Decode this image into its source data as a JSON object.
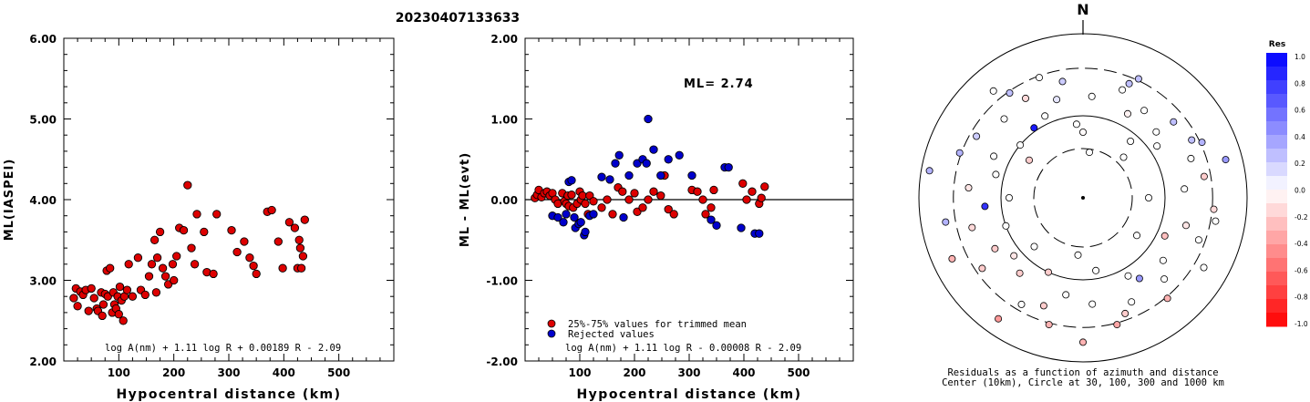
{
  "figure_title": "20230407133633",
  "colors": {
    "trimmed": "#dd0000",
    "rejected": "#0000cc",
    "positive_max": "#0000ff",
    "negative_max": "#ff0000"
  },
  "chart_data": [
    {
      "type": "scatter",
      "xlabel": "Hypocentral distance (km)",
      "ylabel": "ML(IASPEI)",
      "xlim": [
        0,
        600
      ],
      "ylim": [
        2.0,
        6.0
      ],
      "xticks": [
        "100",
        "200",
        "300",
        "400",
        "500"
      ],
      "yticks": [
        "2.00",
        "3.00",
        "4.00",
        "5.00",
        "6.00"
      ],
      "formula": "log A(nm) + 1.11 log R + 0.00189 R - 2.09",
      "series": [
        {
          "points": [
            [
              18,
              2.78
            ],
            [
              22,
              2.9
            ],
            [
              25,
              2.68
            ],
            [
              30,
              2.86
            ],
            [
              35,
              2.82
            ],
            [
              40,
              2.88
            ],
            [
              45,
              2.62
            ],
            [
              50,
              2.9
            ],
            [
              55,
              2.78
            ],
            [
              60,
              2.65
            ],
            [
              62,
              2.62
            ],
            [
              68,
              2.85
            ],
            [
              70,
              2.56
            ],
            [
              72,
              2.7
            ],
            [
              75,
              2.83
            ],
            [
              78,
              3.12
            ],
            [
              80,
              2.8
            ],
            [
              84,
              3.15
            ],
            [
              88,
              2.6
            ],
            [
              90,
              2.85
            ],
            [
              92,
              2.7
            ],
            [
              95,
              2.65
            ],
            [
              98,
              2.8
            ],
            [
              100,
              2.58
            ],
            [
              102,
              2.92
            ],
            [
              105,
              2.75
            ],
            [
              108,
              2.5
            ],
            [
              110,
              2.8
            ],
            [
              115,
              2.88
            ],
            [
              118,
              3.2
            ],
            [
              125,
              2.8
            ],
            [
              135,
              3.28
            ],
            [
              140,
              2.88
            ],
            [
              148,
              2.82
            ],
            [
              155,
              3.05
            ],
            [
              160,
              3.2
            ],
            [
              165,
              3.5
            ],
            [
              168,
              2.85
            ],
            [
              170,
              3.28
            ],
            [
              175,
              3.6
            ],
            [
              180,
              3.15
            ],
            [
              185,
              3.05
            ],
            [
              190,
              2.95
            ],
            [
              198,
              3.2
            ],
            [
              200,
              3.0
            ],
            [
              205,
              3.3
            ],
            [
              210,
              3.65
            ],
            [
              218,
              3.62
            ],
            [
              225,
              4.18
            ],
            [
              232,
              3.4
            ],
            [
              238,
              3.2
            ],
            [
              242,
              3.82
            ],
            [
              255,
              3.6
            ],
            [
              260,
              3.1
            ],
            [
              272,
              3.08
            ],
            [
              278,
              3.82
            ],
            [
              305,
              3.62
            ],
            [
              315,
              3.35
            ],
            [
              328,
              3.48
            ],
            [
              338,
              3.28
            ],
            [
              345,
              3.18
            ],
            [
              350,
              3.08
            ],
            [
              370,
              3.85
            ],
            [
              378,
              3.87
            ],
            [
              390,
              3.48
            ],
            [
              398,
              3.15
            ],
            [
              410,
              3.72
            ],
            [
              420,
              3.65
            ],
            [
              425,
              3.15
            ],
            [
              428,
              3.5
            ],
            [
              430,
              3.4
            ],
            [
              432,
              3.15
            ],
            [
              435,
              3.3
            ],
            [
              438,
              3.75
            ]
          ]
        }
      ]
    },
    {
      "type": "scatter",
      "xlabel": "Hypocentral distance (km)",
      "ylabel": "ML - ML(evt)",
      "xlim": [
        0,
        600
      ],
      "ylim": [
        -2.0,
        2.0
      ],
      "xticks": [
        "100",
        "200",
        "300",
        "400",
        "500"
      ],
      "yticks": [
        "-2.00",
        "-1.00",
        "0.00",
        "1.00",
        "2.00"
      ],
      "annotation": "ML= 2.74",
      "formula": "log A(nm) + 1.11 log R - 0.00008 R - 2.09",
      "legend": [
        "25%-75% values for trimmed mean",
        "Rejected values"
      ],
      "series": [
        {
          "name": "25%-75% values for trimmed mean",
          "points": [
            [
              18,
              0.02
            ],
            [
              22,
              0.06
            ],
            [
              25,
              0.12
            ],
            [
              30,
              0.03
            ],
            [
              35,
              0.08
            ],
            [
              40,
              0.1
            ],
            [
              45,
              0.05
            ],
            [
              50,
              0.08
            ],
            [
              55,
              0.0
            ],
            [
              60,
              -0.05
            ],
            [
              68,
              0.08
            ],
            [
              72,
              -0.02
            ],
            [
              75,
              -0.05
            ],
            [
              78,
              0.05
            ],
            [
              80,
              -0.08
            ],
            [
              85,
              0.06
            ],
            [
              88,
              -0.1
            ],
            [
              95,
              -0.05
            ],
            [
              100,
              0.1
            ],
            [
              102,
              0.0
            ],
            [
              105,
              0.05
            ],
            [
              110,
              -0.05
            ],
            [
              115,
              -0.18
            ],
            [
              118,
              0.05
            ],
            [
              125,
              -0.02
            ],
            [
              140,
              -0.1
            ],
            [
              150,
              0.0
            ],
            [
              160,
              -0.18
            ],
            [
              170,
              0.15
            ],
            [
              178,
              0.1
            ],
            [
              190,
              0.0
            ],
            [
              200,
              0.08
            ],
            [
              205,
              -0.15
            ],
            [
              215,
              -0.1
            ],
            [
              225,
              0.0
            ],
            [
              235,
              0.1
            ],
            [
              248,
              0.05
            ],
            [
              255,
              0.3
            ],
            [
              262,
              -0.12
            ],
            [
              272,
              -0.18
            ],
            [
              305,
              0.12
            ],
            [
              315,
              0.1
            ],
            [
              325,
              0.0
            ],
            [
              330,
              -0.18
            ],
            [
              340,
              -0.1
            ],
            [
              345,
              0.12
            ],
            [
              398,
              0.2
            ],
            [
              405,
              0.0
            ],
            [
              415,
              0.1
            ],
            [
              428,
              -0.05
            ],
            [
              432,
              0.02
            ],
            [
              438,
              0.16
            ]
          ]
        },
        {
          "name": "Rejected values",
          "points": [
            [
              50,
              -0.2
            ],
            [
              60,
              -0.22
            ],
            [
              70,
              -0.28
            ],
            [
              75,
              -0.18
            ],
            [
              80,
              0.22
            ],
            [
              85,
              0.24
            ],
            [
              90,
              -0.22
            ],
            [
              92,
              -0.35
            ],
            [
              98,
              -0.3
            ],
            [
              102,
              -0.28
            ],
            [
              108,
              -0.44
            ],
            [
              110,
              -0.4
            ],
            [
              118,
              -0.2
            ],
            [
              125,
              -0.18
            ],
            [
              140,
              0.28
            ],
            [
              155,
              0.25
            ],
            [
              165,
              0.45
            ],
            [
              172,
              0.55
            ],
            [
              180,
              -0.22
            ],
            [
              190,
              0.3
            ],
            [
              205,
              0.45
            ],
            [
              215,
              0.5
            ],
            [
              222,
              0.45
            ],
            [
              225,
              1.0
            ],
            [
              235,
              0.62
            ],
            [
              248,
              0.3
            ],
            [
              262,
              0.5
            ],
            [
              282,
              0.55
            ],
            [
              305,
              0.3
            ],
            [
              340,
              -0.25
            ],
            [
              350,
              -0.32
            ],
            [
              365,
              0.4
            ],
            [
              372,
              0.4
            ],
            [
              395,
              -0.35
            ],
            [
              420,
              -0.42
            ],
            [
              428,
              -0.42
            ]
          ]
        }
      ]
    },
    {
      "type": "polar-scatter",
      "north_label": "N",
      "caption_line1": "Residuals as a function of azimuth and distance",
      "caption_line2": "Center (10km), Circle at 30, 100, 300 and 1000 km",
      "rings_km": [
        30,
        100,
        300,
        1000
      ],
      "colorbar_title": "Res",
      "colorbar_ticks": [
        "1.0",
        "0.8",
        "0.6",
        "0.4",
        "0.2",
        "0.0",
        "-0.2",
        "-0.4",
        "-0.6",
        "-0.8",
        "-1.0"
      ],
      "stations": [
        [
          -35,
          0.52,
          0.9
        ],
        [
          0,
          0.4,
          -0.02
        ],
        [
          5,
          0.62,
          0.0
        ],
        [
          8,
          0.28,
          0.0
        ],
        [
          20,
          0.7,
          0.0
        ],
        [
          22,
          0.75,
          0.25
        ],
        [
          25,
          0.8,
          0.25
        ],
        [
          28,
          0.58,
          -0.05
        ],
        [
          35,
          0.65,
          0.0
        ],
        [
          40,
          0.45,
          0.0
        ],
        [
          45,
          0.35,
          0.0
        ],
        [
          48,
          0.6,
          0.0
        ],
        [
          50,
          0.72,
          0.25
        ],
        [
          55,
          0.55,
          0.0
        ],
        [
          62,
          0.75,
          0.25
        ],
        [
          65,
          0.8,
          0.3
        ],
        [
          70,
          0.7,
          0.0
        ],
        [
          75,
          0.9,
          0.4
        ],
        [
          80,
          0.75,
          -0.2
        ],
        [
          85,
          0.62,
          0.0
        ],
        [
          90,
          0.4,
          0.0
        ],
        [
          95,
          0.8,
          -0.15
        ],
        [
          100,
          0.82,
          0.0
        ],
        [
          105,
          0.65,
          -0.1
        ],
        [
          110,
          0.75,
          0.0
        ],
        [
          115,
          0.55,
          -0.25
        ],
        [
          120,
          0.85,
          0.0
        ],
        [
          125,
          0.4,
          0.0
        ],
        [
          128,
          0.62,
          0.0
        ],
        [
          135,
          0.7,
          0.0
        ],
        [
          140,
          0.8,
          -0.3
        ],
        [
          145,
          0.6,
          0.4
        ],
        [
          150,
          0.55,
          0.0
        ],
        [
          155,
          0.7,
          0.0
        ],
        [
          160,
          0.75,
          -0.2
        ],
        [
          165,
          0.8,
          -0.35
        ],
        [
          170,
          0.45,
          0.0
        ],
        [
          175,
          0.65,
          0.0
        ],
        [
          180,
          0.88,
          -0.3
        ],
        [
          185,
          0.35,
          0.0
        ],
        [
          190,
          0.6,
          0.0
        ],
        [
          195,
          0.8,
          -0.3
        ],
        [
          200,
          0.7,
          -0.2
        ],
        [
          205,
          0.5,
          -0.2
        ],
        [
          210,
          0.75,
          0.0
        ],
        [
          215,
          0.9,
          -0.4
        ],
        [
          220,
          0.6,
          -0.2
        ],
        [
          225,
          0.42,
          0.0
        ],
        [
          230,
          0.55,
          -0.1
        ],
        [
          235,
          0.75,
          -0.2
        ],
        [
          240,
          0.62,
          -0.2
        ],
        [
          245,
          0.88,
          -0.3
        ],
        [
          250,
          0.5,
          0.0
        ],
        [
          255,
          0.7,
          -0.15
        ],
        [
          260,
          0.85,
          0.3
        ],
        [
          265,
          0.6,
          0.8
        ],
        [
          270,
          0.45,
          0.0
        ],
        [
          275,
          0.7,
          -0.1
        ],
        [
          280,
          0.95,
          0.3
        ],
        [
          285,
          0.55,
          0.0
        ],
        [
          290,
          0.8,
          0.3
        ],
        [
          295,
          0.6,
          0.0
        ],
        [
          300,
          0.75,
          0.2
        ],
        [
          305,
          0.4,
          -0.2
        ],
        [
          310,
          0.5,
          0.0
        ],
        [
          315,
          0.68,
          0.0
        ],
        [
          320,
          0.85,
          0.0
        ],
        [
          325,
          0.78,
          0.25
        ],
        [
          330,
          0.7,
          -0.15
        ],
        [
          335,
          0.55,
          0.0
        ],
        [
          340,
          0.78,
          0.0
        ],
        [
          345,
          0.62,
          0.1
        ],
        [
          350,
          0.72,
          0.2
        ],
        [
          355,
          0.45,
          0.0
        ]
      ]
    }
  ]
}
